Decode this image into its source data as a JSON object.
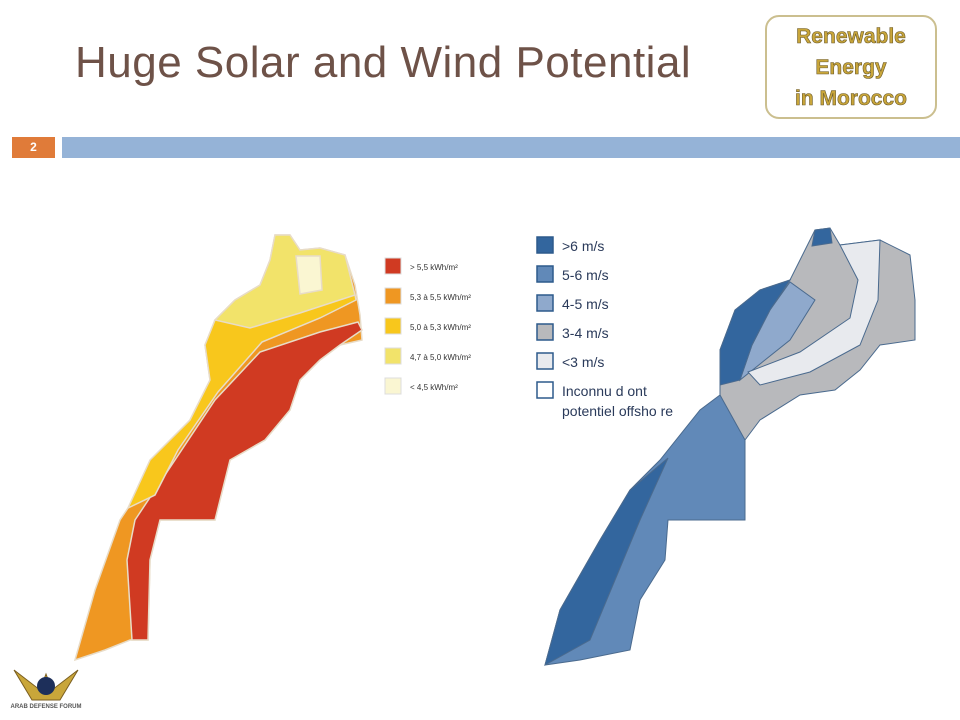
{
  "header": {
    "title": "Huge Solar and Wind Potential",
    "badge": [
      "Renewable",
      "Energy",
      "in Morocco"
    ],
    "slide_number": "2"
  },
  "solar_legend": [
    {
      "label": "> 5,5 kWh/m²",
      "color": "#d03a22"
    },
    {
      "label": "5,3 à 5,5 kWh/m²",
      "color": "#ef9722"
    },
    {
      "label": "5,0 à 5,3 kWh/m²",
      "color": "#f8c71c"
    },
    {
      "label": "4,7 à 5,0 kWh/m²",
      "color": "#f2e36a"
    },
    {
      "label": "< 4,5 kWh/m²",
      "color": "#faf6d2"
    }
  ],
  "wind_legend": [
    {
      "label": ">6 m/s",
      "color": "#33669e"
    },
    {
      "label": "5-6 m/s",
      "color": "#6189b8"
    },
    {
      "label": "4-5 m/s",
      "color": "#8fa9cc"
    },
    {
      "label": "3-4 m/s",
      "color": "#b8b9bc"
    },
    {
      "label": "<3 m/s",
      "color": "#e8eaee"
    },
    {
      "label": [
        "Inconnu d ont",
        "potentiel offsho re"
      ],
      "color": "#ffffff"
    }
  ],
  "logo": "ARAB DEFENSE FORUM"
}
